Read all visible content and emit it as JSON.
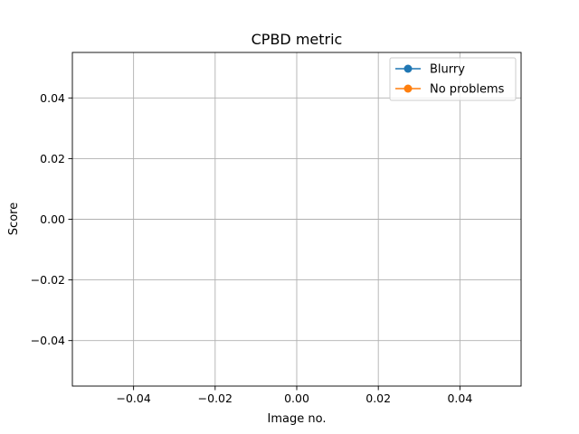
{
  "chart_data": {
    "type": "line",
    "title": "CPBD metric",
    "xlabel": "Image no.",
    "ylabel": "Score",
    "xlim": [
      -0.055,
      0.055
    ],
    "ylim": [
      -0.055,
      0.055
    ],
    "x_ticks": [
      -0.04,
      -0.02,
      0.0,
      0.02,
      0.04
    ],
    "x_tick_labels": [
      "−0.04",
      "−0.02",
      "0.00",
      "0.02",
      "0.04"
    ],
    "y_ticks": [
      -0.04,
      -0.02,
      0.0,
      0.02,
      0.04
    ],
    "y_tick_labels": [
      "−0.04",
      "−0.02",
      "0.00",
      "0.02",
      "0.04"
    ],
    "grid": true,
    "legend_position": "top-right",
    "series": [
      {
        "name": "Blurry",
        "color": "#1f77b4",
        "marker": "circle",
        "x": [],
        "y": []
      },
      {
        "name": "No problems",
        "color": "#ff7f0e",
        "marker": "circle",
        "x": [],
        "y": []
      }
    ]
  }
}
